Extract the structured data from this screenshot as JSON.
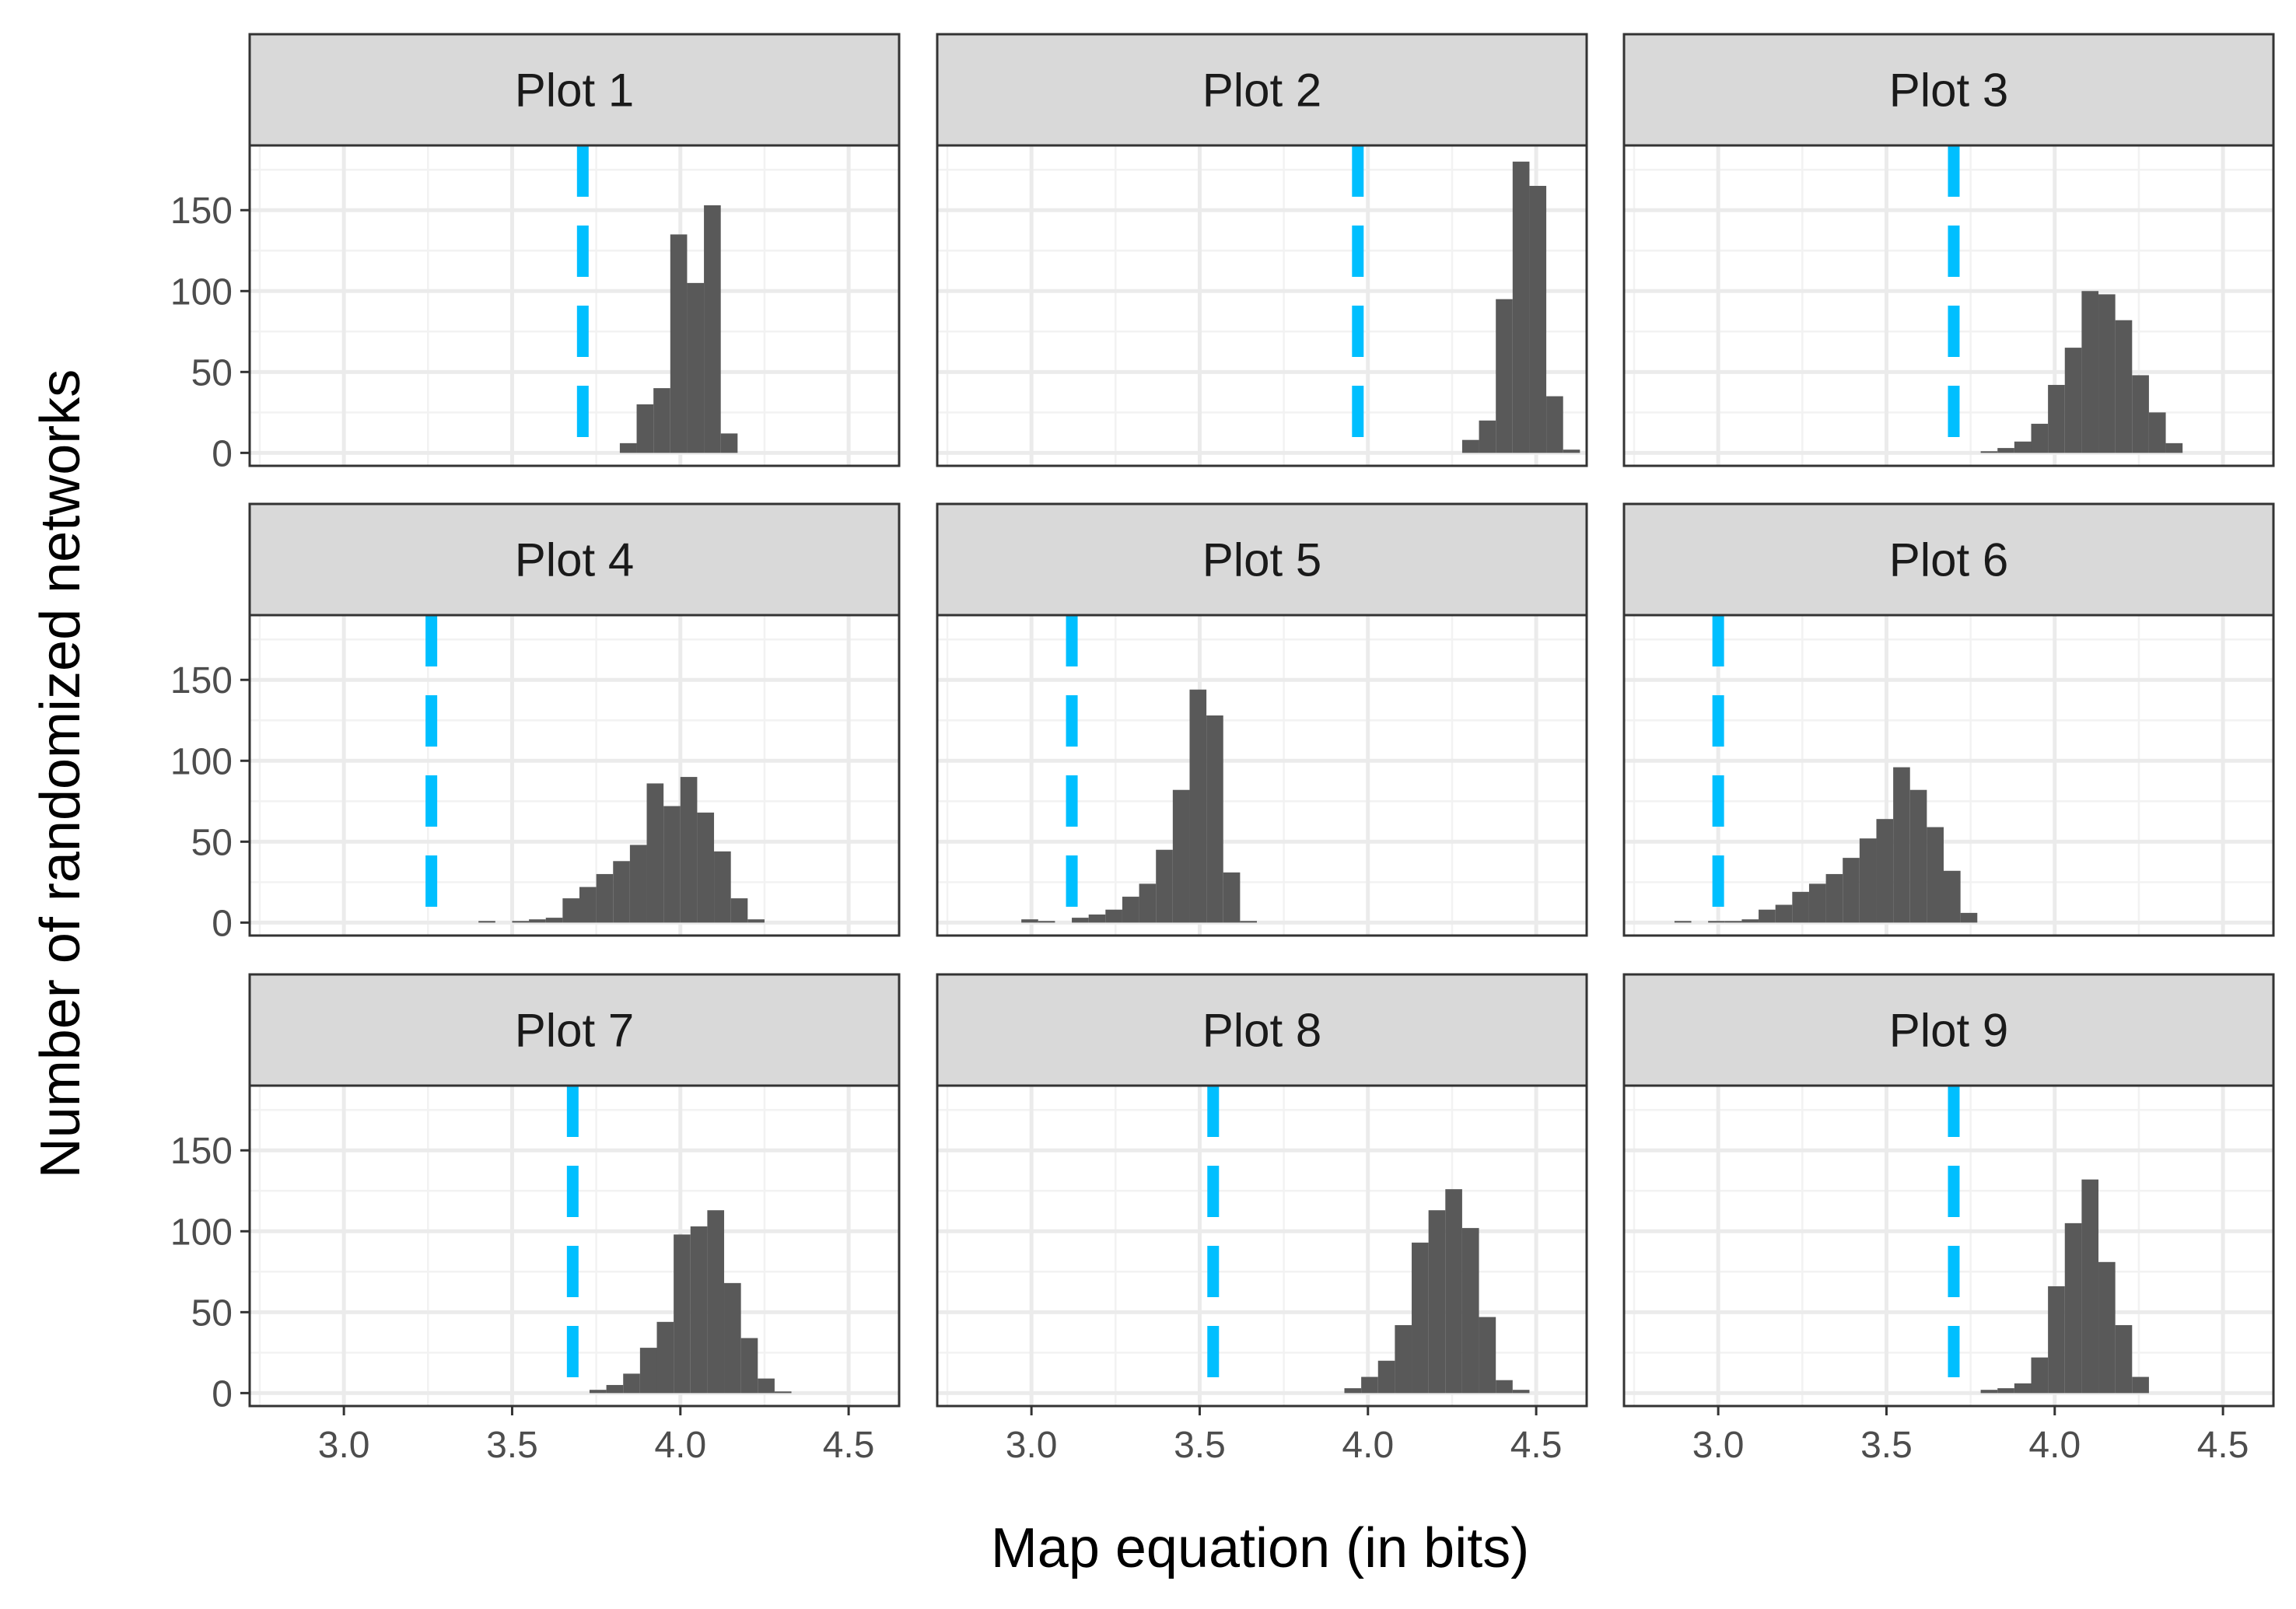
{
  "chart_data": {
    "type": "histogram",
    "layout": "facet-grid-3x3",
    "xlabel": "Map equation (in bits)",
    "ylabel": "Number of randomized networks",
    "xlim": [
      2.72,
      4.65
    ],
    "ylim": [
      -8,
      190
    ],
    "xticks": [
      3.0,
      3.5,
      4.0,
      4.5
    ],
    "xtick_labels": [
      "3.0",
      "3.5",
      "4.0",
      "4.5"
    ],
    "yticks": [
      0,
      50,
      100,
      150
    ],
    "ytick_labels": [
      "0",
      "50",
      "100",
      "150"
    ],
    "grid": true,
    "bar_color": "#595959",
    "reference_line_color": "#00BFFF",
    "reference_line_style": "dashed",
    "panels": [
      {
        "name": "Plot 1",
        "ref": 3.71,
        "bin_start": 3.82,
        "bin_width": 0.05,
        "counts": [
          6,
          30,
          40,
          135,
          105,
          153,
          12
        ]
      },
      {
        "name": "Plot 2",
        "ref": 3.97,
        "bin_start": 4.28,
        "bin_width": 0.05,
        "counts": [
          8,
          20,
          95,
          180,
          165,
          35,
          2
        ]
      },
      {
        "name": "Plot 3",
        "ref": 3.7,
        "bin_start": 3.78,
        "bin_width": 0.05,
        "counts": [
          1,
          3,
          7,
          18,
          42,
          65,
          100,
          98,
          82,
          48,
          25,
          6
        ]
      },
      {
        "name": "Plot 4",
        "ref": 3.26,
        "bin_start": 3.4,
        "bin_width": 0.05,
        "counts": [
          1,
          0,
          1,
          2,
          3,
          15,
          22,
          30,
          38,
          48,
          86,
          72,
          90,
          68,
          44,
          15,
          2
        ]
      },
      {
        "name": "Plot 5",
        "ref": 3.12,
        "bin_start": 2.97,
        "bin_width": 0.05,
        "counts": [
          2,
          1,
          0,
          3,
          5,
          8,
          16,
          24,
          45,
          82,
          144,
          128,
          31,
          1
        ]
      },
      {
        "name": "Plot 6",
        "ref": 3.0,
        "bin_start": 2.87,
        "bin_width": 0.05,
        "counts": [
          1,
          0,
          1,
          1,
          2,
          8,
          11,
          19,
          24,
          30,
          40,
          52,
          64,
          96,
          82,
          59,
          32,
          6
        ]
      },
      {
        "name": "Plot 7",
        "ref": 3.68,
        "bin_start": 3.73,
        "bin_width": 0.05,
        "counts": [
          2,
          5,
          12,
          28,
          44,
          98,
          103,
          113,
          68,
          34,
          9,
          1
        ]
      },
      {
        "name": "Plot 8",
        "ref": 3.54,
        "bin_start": 3.93,
        "bin_width": 0.05,
        "counts": [
          3,
          10,
          20,
          42,
          93,
          113,
          126,
          102,
          47,
          8,
          2
        ]
      },
      {
        "name": "Plot 9",
        "ref": 3.7,
        "bin_start": 3.78,
        "bin_width": 0.05,
        "counts": [
          2,
          3,
          6,
          22,
          66,
          105,
          132,
          81,
          42,
          10
        ]
      }
    ]
  }
}
